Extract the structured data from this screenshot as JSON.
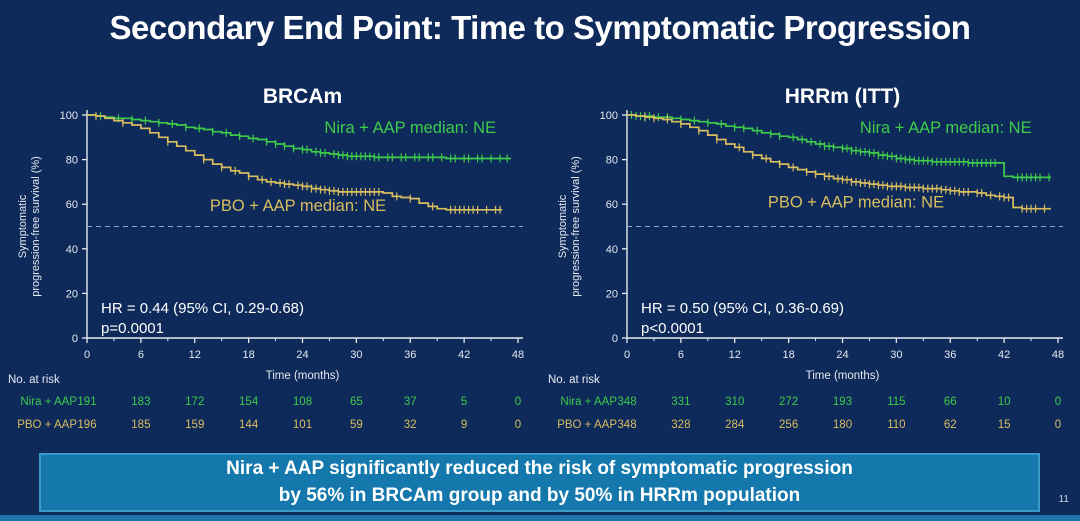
{
  "slide": {
    "title": "Secondary End Point: Time to Symptomatic Progression",
    "page_number": "11",
    "banner": {
      "line1": "Nira + AAP significantly reduced the risk of symptomatic progression",
      "line2": "by 56% in BRCAm group and by 50% in HRRm population"
    },
    "colors": {
      "background": "#0d2a5a",
      "nira": "#3ecb4a",
      "pbo": "#d9bd5f",
      "axis": "#e6e9ef",
      "dashed_line": "#9aa5b8",
      "banner_fill": "#1478ad",
      "banner_border": "#3d9ac6"
    }
  },
  "chart_data": [
    {
      "type": "line",
      "subtype": "kaplan-meier",
      "title": "BRCAm",
      "ylabel_line1": "Symptomatic",
      "ylabel_line2": "progression-free survival (%)",
      "xlabel": "Time (months)",
      "xlim": [
        0,
        48
      ],
      "ylim": [
        0,
        100
      ],
      "xticks": [
        0,
        6,
        12,
        18,
        24,
        30,
        36,
        42,
        48
      ],
      "yticks": [
        0,
        20,
        40,
        60,
        80,
        100
      ],
      "reference_line_y": 50,
      "hr_text": "HR = 0.44 (95% CI, 0.29-0.68)",
      "p_text": "p=0.0001",
      "series": [
        {
          "name": "Nira + AAP",
          "median_label": "Nira + AAP median: NE",
          "label_pos": [
            36,
            92
          ],
          "color_key": "nira",
          "points": [
            [
              0,
              100
            ],
            [
              1,
              99.5
            ],
            [
              2,
              99
            ],
            [
              3,
              98.5
            ],
            [
              5,
              98
            ],
            [
              6,
              97.5
            ],
            [
              7,
              97
            ],
            [
              8,
              96.5
            ],
            [
              9,
              96
            ],
            [
              10,
              95.5
            ],
            [
              11,
              94.5
            ],
            [
              12,
              94
            ],
            [
              13,
              93.5
            ],
            [
              14,
              92.5
            ],
            [
              15,
              92
            ],
            [
              16,
              91
            ],
            [
              17,
              90.5
            ],
            [
              18,
              89.5
            ],
            [
              19,
              89
            ],
            [
              20,
              88
            ],
            [
              21,
              87
            ],
            [
              22,
              86
            ],
            [
              23,
              85
            ],
            [
              24,
              84.5
            ],
            [
              25,
              83.5
            ],
            [
              26,
              83
            ],
            [
              27,
              82.5
            ],
            [
              28,
              82
            ],
            [
              29,
              81.5
            ],
            [
              32,
              81
            ],
            [
              36,
              81
            ],
            [
              40,
              80.5
            ],
            [
              47,
              80.5
            ]
          ],
          "censors": [
            1.5,
            3.5,
            5,
            6.5,
            8,
            9.5,
            11,
            12.5,
            14,
            15.5,
            17,
            18.5,
            20,
            21,
            22,
            23,
            24,
            24.5,
            25.5,
            26,
            26.5,
            27.5,
            28,
            28.5,
            29,
            29.5,
            30,
            30.5,
            31,
            31.5,
            32,
            32.5,
            33.5,
            34,
            35,
            35.5,
            36.5,
            37,
            38,
            38.5,
            39.5,
            40.5,
            41,
            42,
            42.5,
            43.5,
            44,
            45,
            46,
            46.8
          ]
        },
        {
          "name": "PBO + AAP",
          "median_label": "PBO + AAP median: NE",
          "label_pos": [
            23.5,
            57
          ],
          "color_key": "pbo",
          "points": [
            [
              0,
              100
            ],
            [
              1,
              99.5
            ],
            [
              2,
              98.5
            ],
            [
              3,
              97.5
            ],
            [
              4,
              96.5
            ],
            [
              5,
              95.5
            ],
            [
              6,
              94
            ],
            [
              7,
              92
            ],
            [
              8,
              90
            ],
            [
              9,
              88
            ],
            [
              10,
              86
            ],
            [
              11,
              84
            ],
            [
              12,
              82
            ],
            [
              13,
              80
            ],
            [
              14,
              78
            ],
            [
              15,
              76.5
            ],
            [
              16,
              75
            ],
            [
              17,
              74
            ],
            [
              18,
              72.5
            ],
            [
              19,
              71
            ],
            [
              20,
              70
            ],
            [
              21,
              69.5
            ],
            [
              22,
              69
            ],
            [
              23,
              68.5
            ],
            [
              24,
              68
            ],
            [
              25,
              67
            ],
            [
              26,
              66.5
            ],
            [
              27,
              66
            ],
            [
              28,
              65.5
            ],
            [
              32,
              65.5
            ],
            [
              33,
              65
            ],
            [
              34,
              63.5
            ],
            [
              35,
              63
            ],
            [
              36,
              62.5
            ],
            [
              37,
              60.5
            ],
            [
              38,
              59
            ],
            [
              39,
              58
            ],
            [
              40,
              57.5
            ],
            [
              46,
              57.5
            ]
          ],
          "censors": [
            1,
            4,
            9,
            13,
            15,
            16.5,
            18,
            19.5,
            20.5,
            21.5,
            22,
            22.5,
            23.5,
            24,
            24.5,
            25,
            25.5,
            26,
            26.5,
            27,
            27.5,
            28,
            28.5,
            29,
            29.5,
            30,
            30.5,
            31,
            31.5,
            32,
            32.5,
            34.5,
            36,
            38.5,
            40.5,
            41,
            41.5,
            42,
            42.5,
            43,
            43.5,
            44.5,
            45.5,
            46
          ]
        }
      ],
      "risk_table": {
        "label": "No. at risk",
        "rows": [
          {
            "name": "Nira + AAP",
            "color_key": "nira",
            "counts": [
              191,
              183,
              172,
              154,
              108,
              65,
              37,
              5,
              0
            ]
          },
          {
            "name": "PBO + AAP",
            "color_key": "pbo",
            "counts": [
              196,
              185,
              159,
              144,
              101,
              59,
              32,
              9,
              0
            ]
          }
        ]
      }
    },
    {
      "type": "line",
      "subtype": "kaplan-meier",
      "title": "HRRm (ITT)",
      "ylabel_line1": "Symptomatic",
      "ylabel_line2": "progression-free survival (%)",
      "xlabel": "Time (months)",
      "xlim": [
        0,
        48
      ],
      "ylim": [
        0,
        100
      ],
      "xticks": [
        0,
        6,
        12,
        18,
        24,
        30,
        36,
        42,
        48
      ],
      "yticks": [
        0,
        20,
        40,
        60,
        80,
        100
      ],
      "reference_line_y": 50,
      "hr_text": "HR = 0.50 (95% CI, 0.36-0.69)",
      "p_text": "p<0.0001",
      "series": [
        {
          "name": "Nira + AAP",
          "median_label": "Nira + AAP median: NE",
          "label_pos": [
            35.5,
            92
          ],
          "color_key": "nira",
          "points": [
            [
              0,
              100
            ],
            [
              1,
              99.5
            ],
            [
              3,
              99
            ],
            [
              5,
              98.5
            ],
            [
              6,
              98
            ],
            [
              7,
              97.5
            ],
            [
              8,
              97
            ],
            [
              9,
              96.5
            ],
            [
              10,
              96
            ],
            [
              11,
              95
            ],
            [
              12,
              94.5
            ],
            [
              13,
              94
            ],
            [
              14,
              93
            ],
            [
              15,
              92
            ],
            [
              16,
              91.5
            ],
            [
              17,
              90.5
            ],
            [
              18,
              90
            ],
            [
              19,
              89
            ],
            [
              20,
              88
            ],
            [
              21,
              87
            ],
            [
              22,
              86
            ],
            [
              23,
              85.5
            ],
            [
              24,
              85
            ],
            [
              25,
              84
            ],
            [
              26,
              83.5
            ],
            [
              27,
              83
            ],
            [
              28,
              82
            ],
            [
              29,
              81.5
            ],
            [
              30,
              80.5
            ],
            [
              31,
              80
            ],
            [
              32,
              79.5
            ],
            [
              34,
              79
            ],
            [
              38,
              78.5
            ],
            [
              41.5,
              78.5
            ],
            [
              42,
              72.5
            ],
            [
              43,
              72
            ],
            [
              47,
              72
            ]
          ],
          "censors": [
            0.5,
            1,
            1.5,
            2,
            2.5,
            3.5,
            4.5,
            6,
            7.5,
            9,
            10.5,
            12,
            13,
            14.5,
            16,
            17,
            18.5,
            19.5,
            20.5,
            21.5,
            22,
            22.5,
            23,
            24,
            24.5,
            25,
            25.5,
            26,
            26.5,
            27,
            27.5,
            28,
            28.5,
            29,
            29.5,
            30,
            30.5,
            31,
            31.5,
            32,
            32.5,
            33,
            33.5,
            34,
            34.5,
            35,
            35.5,
            36,
            36.5,
            37,
            37.5,
            38,
            38.5,
            39,
            39.5,
            40,
            40.5,
            41,
            43.5,
            44,
            44.5,
            45,
            45.5,
            46,
            47
          ]
        },
        {
          "name": "PBO + AAP",
          "median_label": "PBO + AAP median: NE",
          "label_pos": [
            25.5,
            58.5
          ],
          "color_key": "pbo",
          "points": [
            [
              0,
              100
            ],
            [
              1,
              99.5
            ],
            [
              2,
              99
            ],
            [
              3,
              98.5
            ],
            [
              4,
              98
            ],
            [
              5,
              97
            ],
            [
              6,
              96
            ],
            [
              7,
              94.5
            ],
            [
              8,
              93
            ],
            [
              9,
              91
            ],
            [
              10,
              89
            ],
            [
              11,
              87
            ],
            [
              12,
              85.5
            ],
            [
              13,
              83.5
            ],
            [
              14,
              82
            ],
            [
              15,
              80.5
            ],
            [
              16,
              79
            ],
            [
              17,
              78
            ],
            [
              18,
              76.5
            ],
            [
              19,
              75.5
            ],
            [
              20,
              74.5
            ],
            [
              21,
              73.5
            ],
            [
              22,
              72.5
            ],
            [
              23,
              71.5
            ],
            [
              24,
              71
            ],
            [
              25,
              70
            ],
            [
              26,
              69.5
            ],
            [
              27,
              69
            ],
            [
              28,
              68.5
            ],
            [
              29,
              68
            ],
            [
              31,
              67.5
            ],
            [
              33,
              67
            ],
            [
              35,
              66.5
            ],
            [
              36,
              66
            ],
            [
              37,
              65.5
            ],
            [
              39,
              65
            ],
            [
              40,
              64
            ],
            [
              41,
              63.5
            ],
            [
              42,
              63
            ],
            [
              43,
              58.5
            ],
            [
              44,
              58
            ],
            [
              47,
              58
            ]
          ],
          "censors": [
            2,
            3,
            4.5,
            6,
            8,
            10,
            12.5,
            14,
            15.5,
            17,
            18.5,
            20,
            21,
            22,
            22.5,
            23.5,
            24,
            24.5,
            25,
            25.5,
            26,
            26.5,
            27,
            27.5,
            28,
            28.5,
            29,
            29.5,
            30,
            30.5,
            31,
            31.5,
            32,
            32.5,
            33,
            33.5,
            34,
            34.5,
            35,
            35.5,
            36,
            36.5,
            37,
            37.5,
            38,
            39,
            39.5,
            40.5,
            41.5,
            42,
            42.5,
            44,
            44.5,
            45,
            45.5,
            46.5
          ]
        }
      ],
      "risk_table": {
        "label": "No. at risk",
        "rows": [
          {
            "name": "Nira + AAP",
            "color_key": "nira",
            "counts": [
              348,
              331,
              310,
              272,
              193,
              115,
              66,
              10,
              0
            ]
          },
          {
            "name": "PBO + AAP",
            "color_key": "pbo",
            "counts": [
              348,
              328,
              284,
              256,
              180,
              110,
              62,
              15,
              0
            ]
          }
        ]
      }
    }
  ]
}
